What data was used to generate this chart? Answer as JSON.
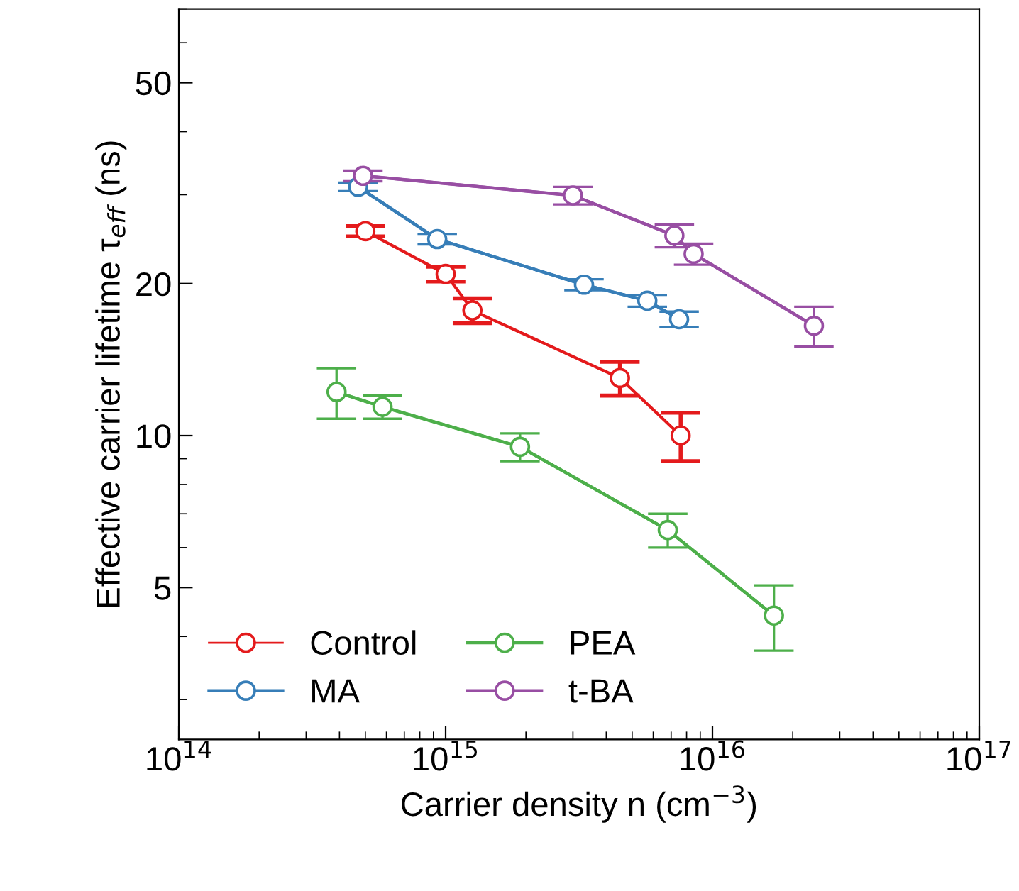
{
  "chart_data": {
    "type": "line",
    "xlabel": "Carrier density n (cm$^{−3}$)",
    "ylabel": "Effective carrier lifetime τ$_{eff}$ (ns)",
    "log": "xy",
    "xlim": [
      100000000000000.0,
      1e+17
    ],
    "ylim": [
      2.5,
      70
    ],
    "xticks": [
      {
        "value": 100000000000000.0,
        "label": "10$^{14}$"
      },
      {
        "value": 1000000000000000.0,
        "label": "10$^{15}$"
      },
      {
        "value": 1e+16,
        "label": "10$^{16}$"
      },
      {
        "value": 1e+17,
        "label": "10$^{17}$"
      }
    ],
    "yticks": [
      5,
      10,
      20,
      50
    ],
    "marker": "circle",
    "legend": "bottom left",
    "grid": false,
    "series": [
      {
        "name": "Control",
        "color": "#e41a1c",
        "x": [
          500000000000000.0,
          1000000000000000.0,
          1260000000000000.0,
          4500000000000000.0,
          7600000000000000.0
        ],
        "values": [
          25.4,
          20.9,
          17.7,
          13.0,
          10.0
        ],
        "errors": [
          0.6,
          0.7,
          1.0,
          1.0,
          1.1
        ]
      },
      {
        "name": "MA",
        "color": "#377eb8",
        "x": [
          470000000000000.0,
          930000000000000.0,
          3300000000000000.0,
          5700000000000000.0,
          7500000000000000.0
        ],
        "values": [
          31.1,
          24.5,
          19.9,
          18.5,
          17.0
        ],
        "errors": [
          0.6,
          0.6,
          0.5,
          0.5,
          0.6
        ]
      },
      {
        "name": "PEA",
        "color": "#4daf4a",
        "x": [
          390000000000000.0,
          580000000000000.0,
          1900000000000000.0,
          6800000000000000.0,
          1.7e+16
        ],
        "values": [
          12.2,
          11.4,
          9.5,
          6.5,
          4.4
        ],
        "errors": [
          1.4,
          0.6,
          0.6,
          0.5,
          0.65
        ]
      },
      {
        "name": "t-BA",
        "color": "#984ea3",
        "x": [
          490000000000000.0,
          3000000000000000.0,
          7200000000000000.0,
          8500000000000000.0,
          2.4e+16
        ],
        "values": [
          32.7,
          29.9,
          24.9,
          22.9,
          16.5
        ],
        "errors": [
          0.8,
          1.2,
          1.3,
          1.1,
          1.5
        ]
      }
    ]
  }
}
